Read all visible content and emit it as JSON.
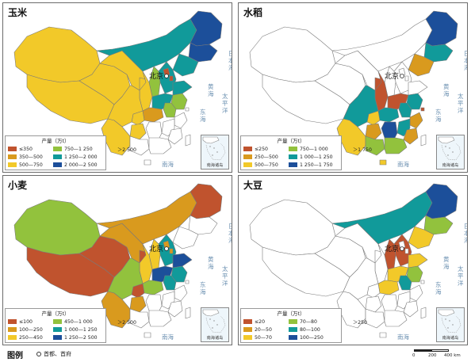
{
  "unit_label": "产量（万t）",
  "capital_label": "北京",
  "sea_labels": [
    "日本海",
    "黄海",
    "东海",
    "太平洋",
    "南海"
  ],
  "inset_label": "南海诸岛",
  "colors": {
    "land_default": "#ffffff",
    "border": "#7a7a7a",
    "sea": "#e6f2f8",
    "class1": "#c0532e",
    "class2": "#d99a1e",
    "class3": "#f2c929",
    "class4": "#92c23d",
    "class5": "#119a9a",
    "class6": "#1c4f9a"
  },
  "panels": [
    {
      "title": "玉米",
      "legend": [
        "≤350",
        "350—500",
        "500—750",
        "750—1 250",
        "1 250—2 000",
        "2 000—2 500",
        "＞2 500"
      ],
      "provinces": {
        "heilongjiang": 6,
        "jilin": 6,
        "liaoning": 5,
        "neimenggu": 5,
        "hebei": 5,
        "shandong": 5,
        "henan": 5,
        "shanxi": 4,
        "anhui": 4,
        "jiangsu": 4,
        "beijing": 1,
        "tianjin": 1,
        "xinjiang": 3,
        "xizang": 3,
        "gansu": 3,
        "ningxia": 3,
        "qinghai": 3,
        "shaanxi": 3,
        "sichuan": 3,
        "yunnan": 3,
        "guizhou": 3,
        "chongqing": 3,
        "hubei": 2,
        "hunan": 0,
        "jiangxi": 0,
        "zhejiang": 0,
        "fujian": 0,
        "guangdong": 0,
        "guangxi": 0,
        "taiwan": 0,
        "hainan": 0,
        "shanghai": 0
      }
    },
    {
      "title": "水稻",
      "legend": [
        "≤250",
        "250—500",
        "500—750",
        "750—1 000",
        "1 000—1 250",
        "1 250—1 750",
        "＞1 750"
      ],
      "provinces": {
        "heilongjiang": 6,
        "jilin": 5,
        "liaoning": 2,
        "neimenggu": 0,
        "hebei": 0,
        "shandong": 0,
        "henan": 1,
        "shanxi": 0,
        "anhui": 5,
        "jiangsu": 5,
        "beijing": 0,
        "tianjin": 0,
        "xinjiang": 0,
        "xizang": 0,
        "gansu": 0,
        "ningxia": 1,
        "qinghai": 0,
        "shaanxi": 1,
        "sichuan": 5,
        "yunnan": 3,
        "guizhou": 2,
        "chongqing": 3,
        "hubei": 5,
        "hunan": 6,
        "jiangxi": 5,
        "zhejiang": 2,
        "fujian": 2,
        "guangdong": 4,
        "guangxi": 4,
        "taiwan": 0,
        "hainan": 3,
        "shanghai": 1
      }
    },
    {
      "title": "小麦",
      "legend": [
        "≤100",
        "100—250",
        "250—450",
        "450—1 000",
        "1 000—1 250",
        "1 250—2 500",
        "＞2 500"
      ],
      "provinces": {
        "heilongjiang": 1,
        "jilin": 0,
        "liaoning": 0,
        "neimenggu": 2,
        "hebei": 5,
        "shandong": 6,
        "henan": 6,
        "shanxi": 3,
        "anhui": 5,
        "jiangsu": 5,
        "beijing": 2,
        "tianjin": 2,
        "xinjiang": 4,
        "xizang": 1,
        "gansu": 2,
        "ningxia": 1,
        "qinghai": 1,
        "shaanxi": 3,
        "sichuan": 4,
        "yunnan": 2,
        "guizhou": 2,
        "chongqing": 1,
        "hubei": 4,
        "hunan": 0,
        "jiangxi": 0,
        "zhejiang": 0,
        "fujian": 0,
        "guangdong": 0,
        "guangxi": 0,
        "taiwan": 0,
        "hainan": 0,
        "shanghai": 0
      }
    },
    {
      "title": "大豆",
      "legend": [
        "≤20",
        "20—50",
        "50—70",
        "70—80",
        "80—100",
        "100—250",
        "＞250"
      ],
      "provinces": {
        "heilongjiang": 6,
        "jilin": 4,
        "liaoning": 3,
        "neimenggu": 5,
        "hebei": 1,
        "shandong": 3,
        "henan": 3,
        "shanxi": 1,
        "anhui": 5,
        "jiangsu": 4,
        "beijing": 0,
        "tianjin": 0,
        "xinjiang": 0,
        "xizang": 0,
        "gansu": 0,
        "ningxia": 0,
        "qinghai": 0,
        "shaanxi": 0,
        "sichuan": 0,
        "yunnan": 0,
        "guizhou": 0,
        "chongqing": 0,
        "hubei": 3,
        "hunan": 0,
        "jiangxi": 0,
        "zhejiang": 0,
        "fujian": 0,
        "guangdong": 0,
        "guangxi": 0,
        "taiwan": 0,
        "hainan": 0,
        "shanghai": 0
      }
    }
  ],
  "footer": {
    "title": "图例",
    "capital_symbol_label": "首都、首府",
    "scale_labels": [
      "0",
      "200",
      "400 km"
    ]
  }
}
